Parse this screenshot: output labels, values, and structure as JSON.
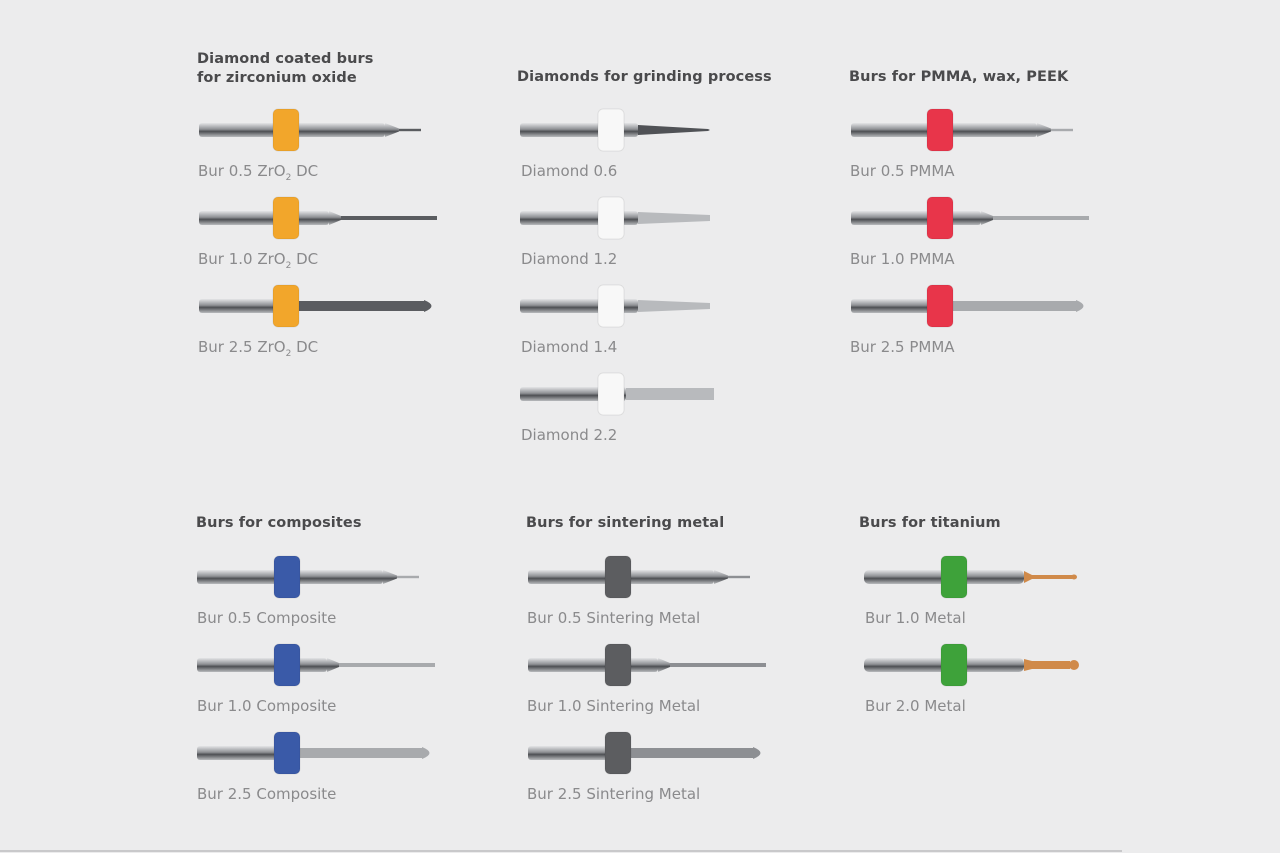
{
  "groups": [
    {
      "heading": "Diamond coated burs",
      "heading2": "for zirconium oxide",
      "ring_color": "#f2a62b",
      "tip_color": "#5a5c60",
      "items": [
        {
          "label": "Bur 0.5 ZrO",
          "sub": "2",
          "suffix": " DC",
          "kind": "fine"
        },
        {
          "label": "Bur 1.0 ZrO",
          "sub": "2",
          "suffix": " DC",
          "kind": "mid"
        },
        {
          "label": "Bur 2.5 ZrO",
          "sub": "2",
          "suffix": " DC",
          "kind": "large"
        }
      ]
    },
    {
      "heading": "Diamonds for grinding process",
      "ring_color": "#f8f8f8",
      "tip_color": "#b8babd",
      "items": [
        {
          "label": "Diamond 0.6",
          "kind": "diamond-fine"
        },
        {
          "label": "Diamond 1.2",
          "kind": "diamond"
        },
        {
          "label": "Diamond 1.4",
          "kind": "diamond"
        },
        {
          "label": "Diamond 2.2",
          "kind": "diamond-wide"
        }
      ]
    },
    {
      "heading": "Burs for PMMA, wax, PEEK",
      "ring_color": "#e8354a",
      "tip_color": "#a8aaad",
      "items": [
        {
          "label": "Bur 0.5 PMMA",
          "kind": "fine"
        },
        {
          "label": "Bur 1.0 PMMA",
          "kind": "mid"
        },
        {
          "label": "Bur 2.5 PMMA",
          "kind": "large"
        }
      ]
    },
    {
      "heading": "Burs for composites",
      "ring_color": "#3a5aa8",
      "tip_color": "#a8aaad",
      "items": [
        {
          "label": "Bur 0.5 Composite",
          "kind": "fine"
        },
        {
          "label": "Bur 1.0 Composite",
          "kind": "mid"
        },
        {
          "label": "Bur 2.5 Composite",
          "kind": "large"
        }
      ]
    },
    {
      "heading": "Burs for sintering metal",
      "ring_color": "#5c5d60",
      "tip_color": "#8d8f93",
      "items": [
        {
          "label": "Bur 0.5 Sintering Metal",
          "kind": "fine"
        },
        {
          "label": "Bur 1.0 Sintering Metal",
          "kind": "mid"
        },
        {
          "label": "Bur 2.5 Sintering Metal",
          "kind": "large"
        }
      ]
    },
    {
      "heading": "Burs for titanium",
      "ring_color": "#3ea23a",
      "tip_color": "#d08a4a",
      "items": [
        {
          "label": "Bur 1.0 Metal",
          "kind": "ti-fine"
        },
        {
          "label": "Bur 2.0 Metal",
          "kind": "ti-large"
        }
      ]
    }
  ]
}
